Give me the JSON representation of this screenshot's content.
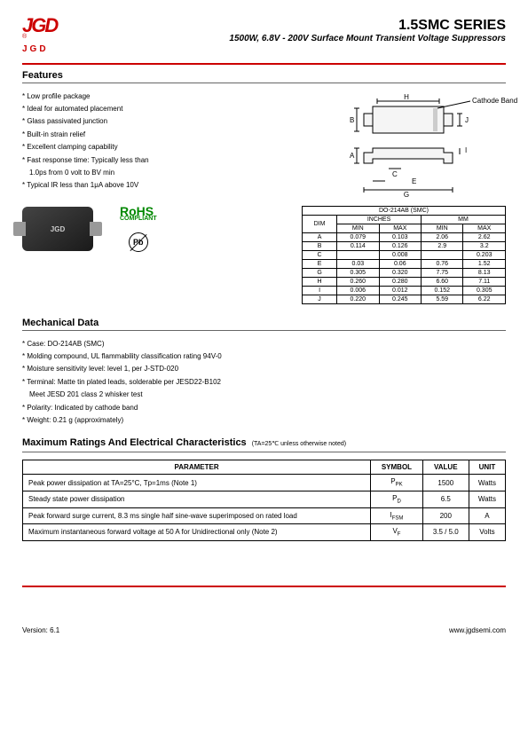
{
  "logo": {
    "top": "JGD",
    "bottom": "JGD",
    "reg": "®"
  },
  "title": {
    "main": "1.5SMC SERIES",
    "sub": "1500W, 6.8V - 200V Surface Mount Transient Voltage Suppressors"
  },
  "sections": {
    "features": "Features",
    "mechanical": "Mechanical Data",
    "ratings": "Maximum Ratings And Electrical Characteristics",
    "ratings_note": "(TA=25℃ unless otherwise noted)"
  },
  "features": [
    "Low profile package",
    "Ideal for automated placement",
    "Glass passivated junction",
    "Built-in strain relief",
    "Excellent clamping capability",
    "Fast response time: Typically less than",
    "1.0ps from 0 volt to BV min",
    "Typical IR less than 1μA above 10V"
  ],
  "feature_indent": [
    6
  ],
  "pkg": {
    "cathode": "Cathode Band",
    "labels": [
      "H",
      "B",
      "J",
      "A",
      "I",
      "C",
      "E",
      "G"
    ]
  },
  "chip_label": "JGD",
  "rohs": {
    "big": "RoHS",
    "small": "COMPLIANT"
  },
  "pb": "Pb",
  "dim_table": {
    "title": "DO-214AB (SMC)",
    "h1": "DIM",
    "h2": "INCHES",
    "h3": "MM",
    "sub": [
      "MIN",
      "MAX",
      "MIN",
      "MAX"
    ],
    "rows": [
      [
        "A",
        "0.079",
        "0.103",
        "2.06",
        "2.62"
      ],
      [
        "B",
        "0.114",
        "0.126",
        "2.9",
        "3.2"
      ],
      [
        "C",
        "",
        "0.008",
        "",
        "0.203"
      ],
      [
        "E",
        "0.03",
        "0.06",
        "0.76",
        "1.52"
      ],
      [
        "G",
        "0.305",
        "0.320",
        "7.75",
        "8.13"
      ],
      [
        "H",
        "0.260",
        "0.280",
        "6.60",
        "7.11"
      ],
      [
        "I",
        "0.006",
        "0.012",
        "0.152",
        "0.305"
      ],
      [
        "J",
        "0.220",
        "0.245",
        "5.59",
        "6.22"
      ]
    ]
  },
  "mechanical": [
    "Case: DO-214AB (SMC)",
    "Molding compound, UL flammability classification rating 94V-0",
    "Moisture sensitivity level: level 1, per J-STD-020",
    "Terminal: Matte tin plated leads, solderable per JESD22-B102",
    "Meet JESD 201 class 2 whisker test",
    "Polarity: Indicated by cathode band",
    "Weight: 0.21 g (approximately)"
  ],
  "mech_indent": [
    4
  ],
  "ratings": {
    "headers": [
      "PARAMETER",
      "SYMBOL",
      "VALUE",
      "UNIT"
    ],
    "rows": [
      {
        "p": "Peak power dissipation at TA=25°C, Tp=1ms (Note 1)",
        "s": "P",
        "ss": "PK",
        "v": "1500",
        "u": "Watts"
      },
      {
        "p": "Steady state power dissipation",
        "s": "P",
        "ss": "D",
        "v": "6.5",
        "u": "Watts"
      },
      {
        "p": "Peak forward surge current, 8.3 ms single half sine-wave superimposed on rated load",
        "s": "I",
        "ss": "FSM",
        "v": "200",
        "u": "A"
      },
      {
        "p": "Maximum instantaneous forward voltage at 50 A for Unidirectional only (Note 2)",
        "s": "V",
        "ss": "F",
        "v": "3.5 / 5.0",
        "u": "Volts"
      }
    ]
  },
  "footer": {
    "version": "Version: 6.1",
    "url": "www.jgdsemi.com"
  }
}
